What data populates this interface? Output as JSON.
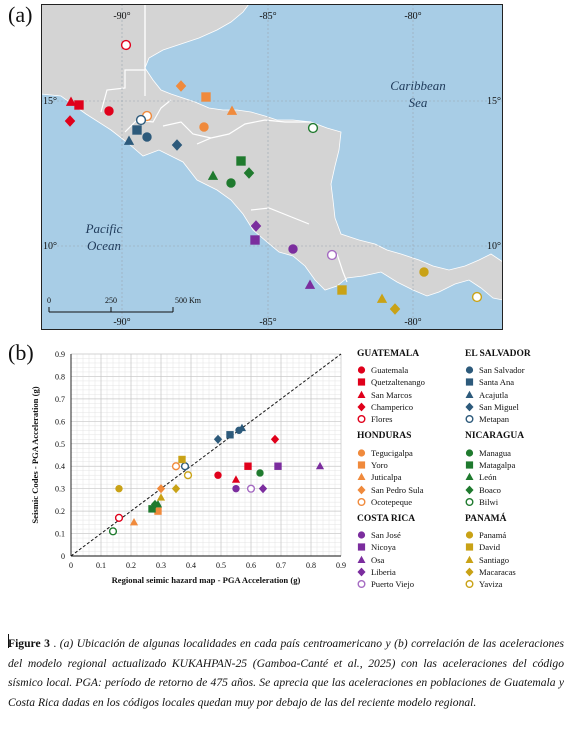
{
  "panel_a_label": "(a)",
  "panel_b_label": "(b)",
  "map": {
    "sea_caribbean_line1": "Caribbean",
    "sea_caribbean_line2": "Sea",
    "ocean_pacific_line1": "Pacific",
    "ocean_pacific_line2": "Ocean",
    "lon_labels": [
      "-90°",
      "-85°",
      "-80°"
    ],
    "lat_labels": [
      "15°",
      "10°"
    ],
    "scale_labels": [
      "0",
      "250",
      "500 Km"
    ],
    "colors": {
      "land": "#d4d4d4",
      "sea": "#a8cde6",
      "border": "#ffffff",
      "grid": "#9aa6b0",
      "label": "#1f3a5a"
    }
  },
  "chart_data": {
    "type": "scatter",
    "xlabel": "Regional seimic hazard map - PGA Acceleration (g)",
    "ylabel": "Seismic Codes - PGA Acceleration (g)",
    "xlim": [
      0,
      0.9
    ],
    "ylim": [
      0,
      0.9
    ],
    "ticks": [
      "0",
      "0.1",
      "0.2",
      "0.3",
      "0.4",
      "0.5",
      "0.6",
      "0.7",
      "0.8",
      "0.9"
    ],
    "grid": true,
    "reference_line": "y = x (dashed)",
    "series": [
      {
        "name": "Guatemala",
        "country": "GUATEMALA",
        "marker": "circle",
        "color": "#e0001b",
        "fill": true,
        "x": 0.49,
        "y": 0.36
      },
      {
        "name": "Quetzaltenango",
        "country": "GUATEMALA",
        "marker": "square",
        "color": "#e0001b",
        "fill": true,
        "x": 0.59,
        "y": 0.4
      },
      {
        "name": "San Marcos",
        "country": "GUATEMALA",
        "marker": "triangle",
        "color": "#e0001b",
        "fill": true,
        "x": 0.55,
        "y": 0.34
      },
      {
        "name": "Champerico",
        "country": "GUATEMALA",
        "marker": "diamond",
        "color": "#e0001b",
        "fill": true,
        "x": 0.68,
        "y": 0.52
      },
      {
        "name": "Flores",
        "country": "GUATEMALA",
        "marker": "circle",
        "color": "#e0001b",
        "fill": false,
        "x": 0.16,
        "y": 0.17
      },
      {
        "name": "Tegucigalpa",
        "country": "HONDURAS",
        "marker": "circle",
        "color": "#f08a3c",
        "fill": true,
        "x": 0.35,
        "y": 0.4
      },
      {
        "name": "Yoro",
        "country": "HONDURAS",
        "marker": "square",
        "color": "#f08a3c",
        "fill": true,
        "x": 0.29,
        "y": 0.2
      },
      {
        "name": "Juticalpa",
        "country": "HONDURAS",
        "marker": "triangle",
        "color": "#f08a3c",
        "fill": true,
        "x": 0.21,
        "y": 0.15
      },
      {
        "name": "San Pedro Sula",
        "country": "HONDURAS",
        "marker": "diamond",
        "color": "#f08a3c",
        "fill": true,
        "x": 0.3,
        "y": 0.3
      },
      {
        "name": "Ocotepeque",
        "country": "HONDURAS",
        "marker": "circle",
        "color": "#f08a3c",
        "fill": false,
        "x": 0.35,
        "y": 0.4
      },
      {
        "name": "San Salvador",
        "country": "EL SALVADOR",
        "marker": "circle",
        "color": "#2d5a7b",
        "fill": true,
        "x": 0.56,
        "y": 0.56
      },
      {
        "name": "Santa Ana",
        "country": "EL SALVADOR",
        "marker": "square",
        "color": "#2d5a7b",
        "fill": true,
        "x": 0.53,
        "y": 0.54
      },
      {
        "name": "Acajutla",
        "country": "EL SALVADOR",
        "marker": "triangle",
        "color": "#2d5a7b",
        "fill": true,
        "x": 0.57,
        "y": 0.57
      },
      {
        "name": "San Miguel",
        "country": "EL SALVADOR",
        "marker": "diamond",
        "color": "#2d5a7b",
        "fill": true,
        "x": 0.49,
        "y": 0.52
      },
      {
        "name": "Metapan",
        "country": "EL SALVADOR",
        "marker": "circle",
        "color": "#2d5a7b",
        "fill": false,
        "x": 0.38,
        "y": 0.4
      },
      {
        "name": "Managua",
        "country": "NICARAGUA",
        "marker": "circle",
        "color": "#1f7a2e",
        "fill": true,
        "x": 0.63,
        "y": 0.37
      },
      {
        "name": "Matagalpa",
        "country": "NICARAGUA",
        "marker": "square",
        "color": "#1f7a2e",
        "fill": true,
        "x": 0.27,
        "y": 0.21
      },
      {
        "name": "León",
        "country": "NICARAGUA",
        "marker": "triangle",
        "color": "#1f7a2e",
        "fill": true,
        "x": 0.29,
        "y": 0.23
      },
      {
        "name": "Boaco",
        "country": "NICARAGUA",
        "marker": "diamond",
        "color": "#1f7a2e",
        "fill": true,
        "x": 0.28,
        "y": 0.23
      },
      {
        "name": "Bilwi",
        "country": "NICARAGUA",
        "marker": "circle",
        "color": "#1f7a2e",
        "fill": false,
        "x": 0.14,
        "y": 0.11
      },
      {
        "name": "San José",
        "country": "COSTA RICA",
        "marker": "circle",
        "color": "#7b2d9e",
        "fill": true,
        "x": 0.55,
        "y": 0.3
      },
      {
        "name": "Nicoya",
        "country": "COSTA RICA",
        "marker": "square",
        "color": "#7b2d9e",
        "fill": true,
        "x": 0.69,
        "y": 0.4
      },
      {
        "name": "Osa",
        "country": "COSTA RICA",
        "marker": "triangle",
        "color": "#7b2d9e",
        "fill": true,
        "x": 0.83,
        "y": 0.4
      },
      {
        "name": "Liberia",
        "country": "COSTA RICA",
        "marker": "diamond",
        "color": "#7b2d9e",
        "fill": true,
        "x": 0.64,
        "y": 0.3
      },
      {
        "name": "Puerto Viejo",
        "country": "COSTA RICA",
        "marker": "circle",
        "color": "#a56bc2",
        "fill": false,
        "x": 0.6,
        "y": 0.3
      },
      {
        "name": "Panamá",
        "country": "PANAMÁ",
        "marker": "circle",
        "color": "#c9a216",
        "fill": true,
        "x": 0.16,
        "y": 0.3
      },
      {
        "name": "David",
        "country": "PANAMÁ",
        "marker": "square",
        "color": "#c9a216",
        "fill": true,
        "x": 0.37,
        "y": 0.43
      },
      {
        "name": "Santiago",
        "country": "PANAMÁ",
        "marker": "triangle",
        "color": "#c9a216",
        "fill": true,
        "x": 0.3,
        "y": 0.26
      },
      {
        "name": "Macaracas",
        "country": "PANAMÁ",
        "marker": "diamond",
        "color": "#c9a216",
        "fill": true,
        "x": 0.35,
        "y": 0.3
      },
      {
        "name": "Yaviza",
        "country": "PANAMÁ",
        "marker": "circle",
        "color": "#c9a216",
        "fill": false,
        "x": 0.39,
        "y": 0.36
      }
    ]
  },
  "legend": {
    "col1": [
      {
        "title": "GUATEMALA",
        "items": [
          "Guatemala",
          "Quetzaltenango",
          "San Marcos",
          "Champerico",
          "Flores"
        ]
      },
      {
        "title": "HONDURAS",
        "items": [
          "Tegucigalpa",
          "Yoro",
          "Juticalpa",
          "San Pedro Sula",
          "Ocotepeque"
        ]
      },
      {
        "title": "COSTA RICA",
        "items": [
          "San José",
          "Nicoya",
          "Osa",
          "Liberia",
          "Puerto Viejo"
        ]
      }
    ],
    "col2": [
      {
        "title": "EL SALVADOR",
        "items": [
          "San Salvador",
          "Santa Ana",
          "Acajutla",
          "San Miguel",
          "Metapan"
        ]
      },
      {
        "title": "NICARAGUA",
        "items": [
          "Managua",
          "Matagalpa",
          "León",
          "Boaco",
          "Bilwi"
        ]
      },
      {
        "title": "PANAMÁ",
        "items": [
          "Panamá",
          "David",
          "Santiago",
          "Macaracas",
          "Yaviza"
        ]
      }
    ]
  },
  "caption": {
    "label": "Figure 3",
    "sep": " . ",
    "text": "(a) Ubicación de algunas localidades en cada país centroamericano y (b) correlación de las aceleraciones del modelo regional actualizado KUKAHPAN-25  (Gamboa-Canté et al., 2025) con las aceleraciones del código sísmico local. PGA: período de retorno de 475 años. Se aprecia que las aceleraciones en poblaciones de Guatemala y Costa Rica dadas en los códigos locales quedan muy por debajo de las del reciente modelo regional."
  }
}
